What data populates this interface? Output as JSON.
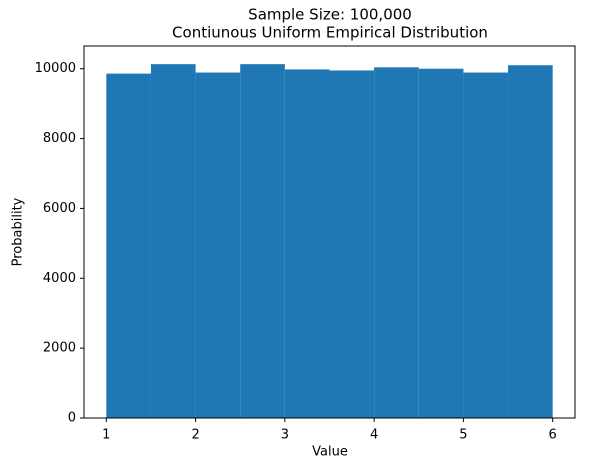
{
  "chart_data": {
    "type": "histogram",
    "title": "Sample Size: 100,000",
    "subtitle": "Contiunous Uniform Empirical Distribution",
    "x_label": "Value",
    "y_label": "Probability",
    "bins": [
      1,
      1.5,
      2,
      2.5,
      3,
      3.5,
      4,
      4.5,
      5,
      5.5,
      6
    ],
    "values": [
      9860,
      10130,
      9890,
      10130,
      9980,
      9950,
      10040,
      10000,
      9890,
      10100
    ],
    "color": "#1f77b4",
    "xlim": [
      0.75,
      6.25
    ],
    "xticks": [
      1,
      2,
      3,
      4,
      5,
      6
    ],
    "ylim": [
      0,
      10650
    ],
    "yticks": [
      0,
      2000,
      4000,
      6000,
      8000,
      10000
    ]
  }
}
